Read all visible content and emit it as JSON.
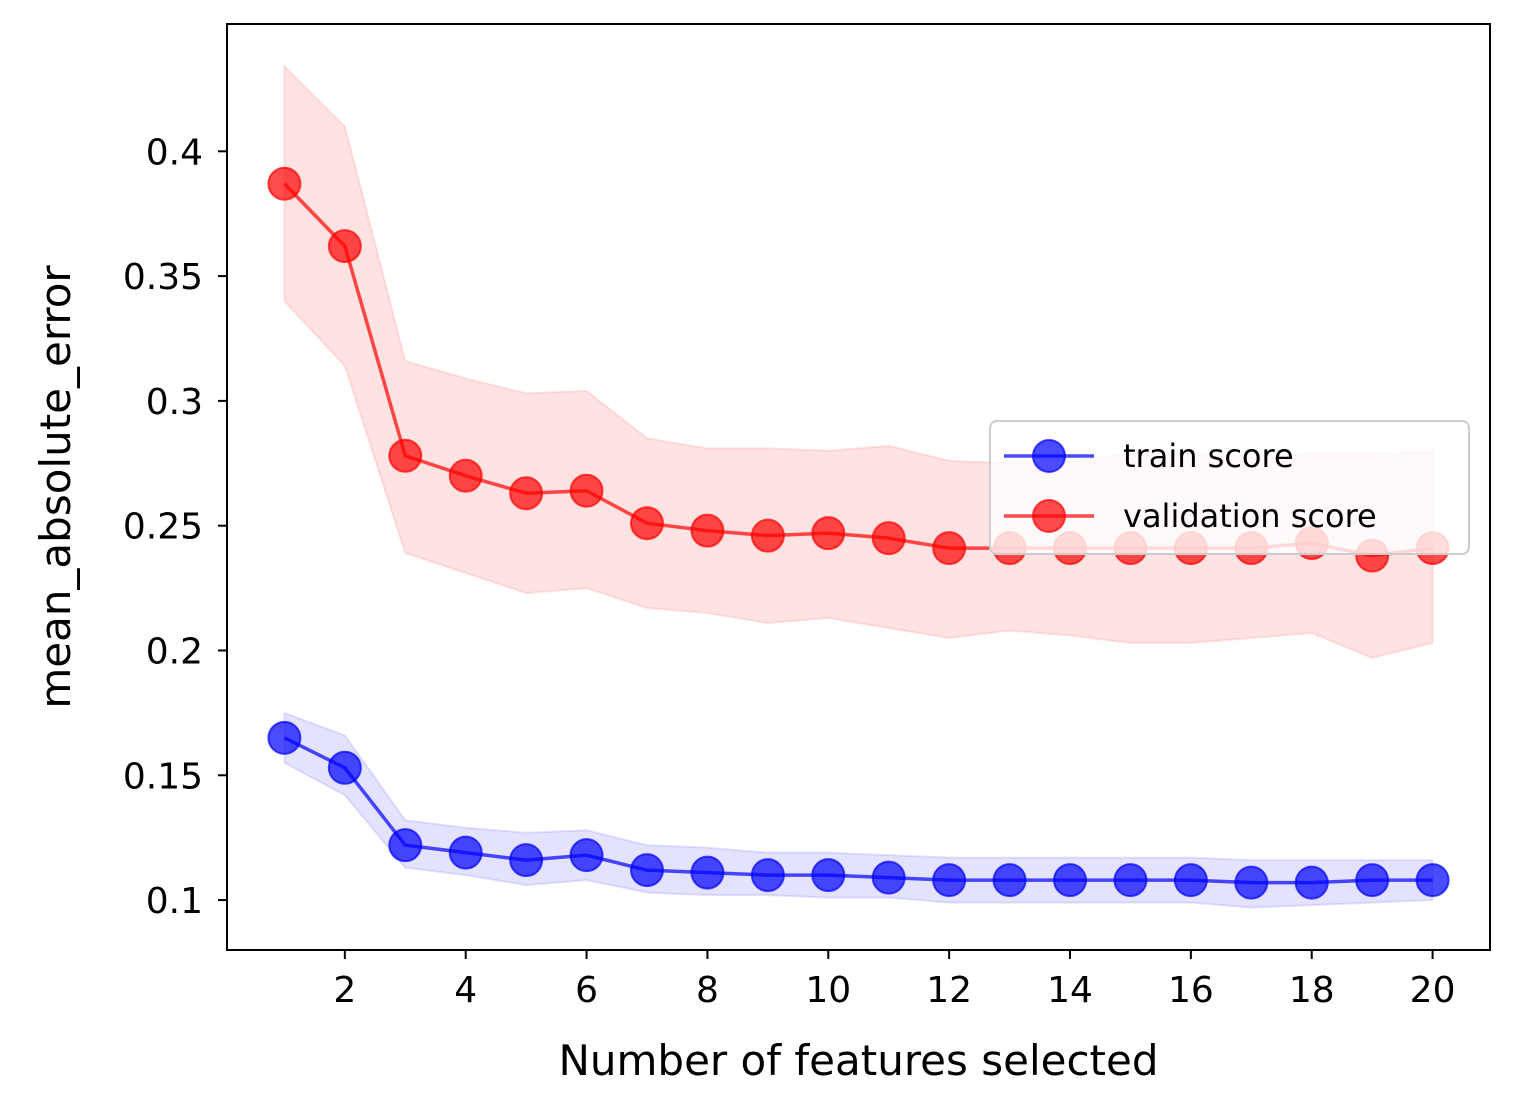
{
  "chart_data": {
    "type": "line",
    "title": "",
    "xlabel": "Number of features selected",
    "ylabel": "mean_absolute_error",
    "xlim": [
      0.05,
      20.95
    ],
    "ylim": [
      0.08,
      0.451
    ],
    "xticks": [
      2,
      4,
      6,
      8,
      10,
      12,
      14,
      16,
      18,
      20
    ],
    "xtick_labels": [
      "2",
      "4",
      "6",
      "8",
      "10",
      "12",
      "14",
      "16",
      "18",
      "20"
    ],
    "yticks": [
      0.1,
      0.15,
      0.2,
      0.25,
      0.3,
      0.35,
      0.4
    ],
    "ytick_labels": [
      "0.1",
      "0.15",
      "0.2",
      "0.25",
      "0.3",
      "0.35",
      "0.4"
    ],
    "grid": false,
    "legend_position": "center-right",
    "x": [
      1,
      2,
      3,
      4,
      5,
      6,
      7,
      8,
      9,
      10,
      11,
      12,
      13,
      14,
      15,
      16,
      17,
      18,
      19,
      20
    ],
    "series": [
      {
        "name": "train score",
        "color": "#0000ff",
        "values": [
          0.165,
          0.153,
          0.122,
          0.119,
          0.116,
          0.118,
          0.112,
          0.111,
          0.11,
          0.11,
          0.109,
          0.108,
          0.108,
          0.108,
          0.108,
          0.108,
          0.107,
          0.107,
          0.108,
          0.108
        ],
        "lower": [
          0.155,
          0.142,
          0.113,
          0.11,
          0.106,
          0.108,
          0.103,
          0.102,
          0.102,
          0.101,
          0.101,
          0.099,
          0.099,
          0.099,
          0.099,
          0.099,
          0.097,
          0.098,
          0.099,
          0.1
        ],
        "upper": [
          0.175,
          0.166,
          0.132,
          0.129,
          0.127,
          0.128,
          0.122,
          0.121,
          0.119,
          0.119,
          0.118,
          0.117,
          0.117,
          0.117,
          0.117,
          0.117,
          0.116,
          0.116,
          0.116,
          0.116
        ]
      },
      {
        "name": "validation score",
        "color": "#ff0000",
        "values": [
          0.387,
          0.362,
          0.278,
          0.27,
          0.263,
          0.264,
          0.251,
          0.248,
          0.246,
          0.247,
          0.245,
          0.241,
          0.241,
          0.241,
          0.241,
          0.241,
          0.241,
          0.243,
          0.238,
          0.241
        ],
        "lower": [
          0.34,
          0.314,
          0.239,
          0.231,
          0.223,
          0.225,
          0.217,
          0.215,
          0.211,
          0.213,
          0.209,
          0.205,
          0.208,
          0.206,
          0.203,
          0.203,
          0.205,
          0.207,
          0.197,
          0.203
        ],
        "upper": [
          0.434,
          0.41,
          0.316,
          0.309,
          0.303,
          0.304,
          0.285,
          0.281,
          0.281,
          0.28,
          0.282,
          0.276,
          0.275,
          0.276,
          0.279,
          0.279,
          0.277,
          0.279,
          0.279,
          0.28
        ]
      }
    ]
  }
}
